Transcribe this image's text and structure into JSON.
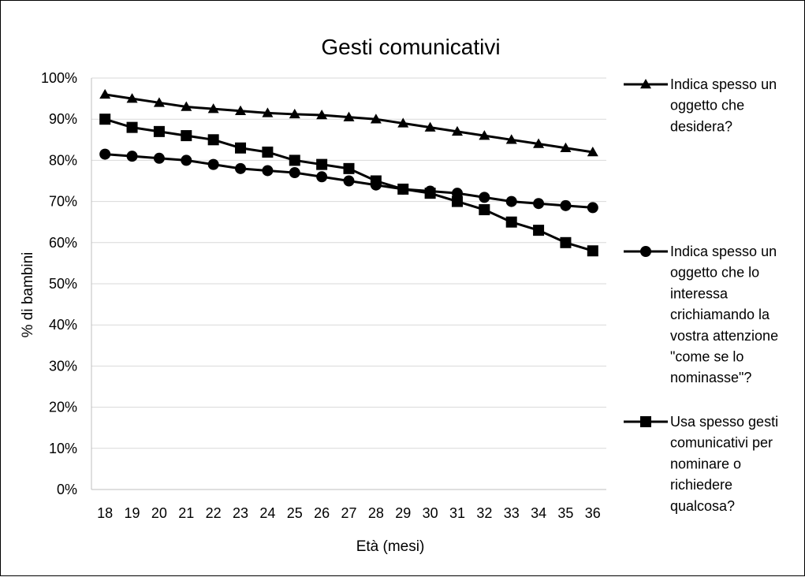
{
  "chart_data": {
    "type": "line",
    "title": "Gesti comunicativi",
    "xlabel": "Età (mesi)",
    "ylabel": "% di bambini",
    "x": [
      18,
      19,
      20,
      21,
      22,
      23,
      24,
      25,
      26,
      27,
      28,
      29,
      30,
      31,
      32,
      33,
      34,
      35,
      36
    ],
    "ylim": [
      0,
      100
    ],
    "y_ticks": [
      "0%",
      "10%",
      "20%",
      "30%",
      "40%",
      "50%",
      "60%",
      "70%",
      "80%",
      "90%",
      "100%"
    ],
    "grid": true,
    "legend_position": "right",
    "line_color": "#000000",
    "grid_color": "#d9d9d9",
    "series": [
      {
        "name": "Indica spesso un oggetto che desidera?",
        "marker": "triangle",
        "legend_lines": [
          "Indica spesso un",
          "oggetto che",
          "desidera?"
        ],
        "values": [
          96,
          95,
          94,
          93,
          92.5,
          92,
          91.5,
          91.2,
          91,
          90.5,
          90,
          89,
          88,
          87,
          86,
          85,
          84,
          83,
          82
        ]
      },
      {
        "name": "Indica spesso un oggetto che lo interessa crichiamando la vostra attenzione \"come se lo nominasse\"?",
        "marker": "circle",
        "legend_lines": [
          "Indica spesso un",
          "oggetto che lo",
          "interessa",
          "crichiamando la",
          "vostra attenzione",
          "\"come se lo",
          "nominasse\"?"
        ],
        "values": [
          81.5,
          81,
          80.5,
          80,
          79,
          78,
          77.5,
          77,
          76,
          75,
          74,
          73,
          72.5,
          72,
          71,
          70,
          69.5,
          69,
          68.5
        ]
      },
      {
        "name": "Usa spesso gesti comunicativi per nominare o richiedere qualcosa?",
        "marker": "square",
        "legend_lines": [
          "Usa spesso gesti",
          "comunicativi per",
          "nominare o",
          "richiedere",
          "qualcosa?"
        ],
        "values": [
          90,
          88,
          87,
          86,
          85,
          83,
          82,
          80,
          79,
          78,
          75,
          73,
          72,
          70,
          68,
          65,
          63,
          60,
          58
        ]
      }
    ]
  }
}
